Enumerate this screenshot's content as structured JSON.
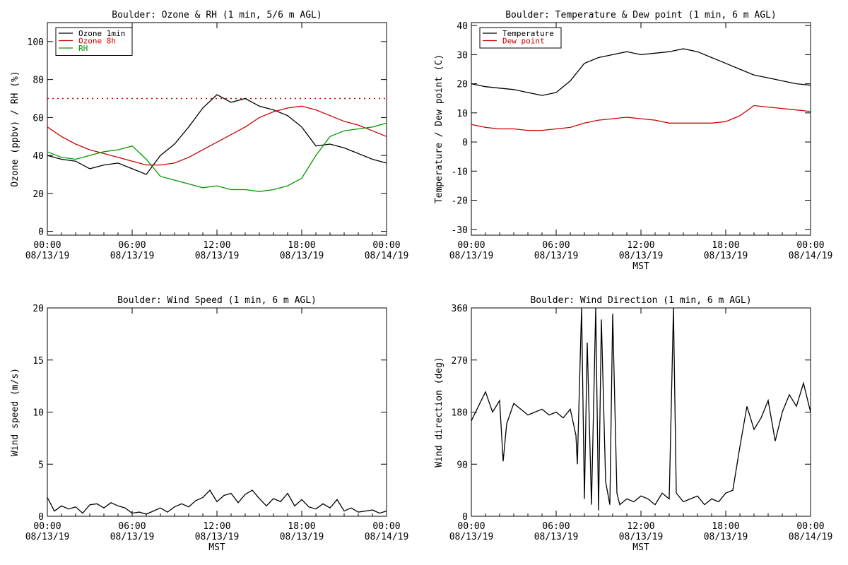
{
  "chart_data": [
    {
      "type": "line",
      "title": "Boulder: Ozone & RH (1 min, 5/6 m AGL)",
      "xlabel": "",
      "ylabel": "Ozone (ppbv) / RH (%)",
      "ylim": [
        -2,
        110
      ],
      "yticks": [
        0,
        20,
        40,
        60,
        80,
        100
      ],
      "xlim": [
        0,
        24
      ],
      "xticks": [
        0,
        6,
        12,
        18,
        24
      ],
      "xtick_labels": [
        [
          "00:00",
          "08/13/19"
        ],
        [
          "06:00",
          "08/13/19"
        ],
        [
          "12:00",
          "08/13/19"
        ],
        [
          "18:00",
          "08/13/19"
        ],
        [
          "00:00",
          "08/14/19"
        ]
      ],
      "legend_position": "top-left",
      "x": [
        0,
        1,
        2,
        3,
        4,
        5,
        6,
        7,
        8,
        9,
        10,
        11,
        12,
        13,
        14,
        15,
        16,
        17,
        18,
        19,
        20,
        21,
        22,
        23,
        24
      ],
      "series": [
        {
          "name": "Ozone 1min",
          "color": "#000000",
          "values": [
            40,
            38,
            37,
            33,
            35,
            36,
            33,
            30,
            40,
            46,
            55,
            65,
            72,
            68,
            70,
            66,
            64,
            61,
            55,
            45,
            46,
            44,
            41,
            38,
            36
          ]
        },
        {
          "name": "Ozone 8h",
          "color": "#cc0000",
          "values": [
            55,
            50,
            46,
            43,
            41,
            39,
            37,
            35,
            35,
            36,
            39,
            43,
            47,
            51,
            55,
            60,
            63,
            65,
            66,
            64,
            61,
            58,
            56,
            53,
            50
          ]
        },
        {
          "name": "RH",
          "color": "#009900",
          "values": [
            42,
            39,
            38,
            40,
            42,
            43,
            45,
            38,
            29,
            27,
            25,
            23,
            24,
            22,
            22,
            21,
            22,
            24,
            28,
            40,
            50,
            53,
            54,
            55,
            57
          ]
        }
      ],
      "reference_lines": [
        {
          "y": 70,
          "color": "#cc0000",
          "style": "dotted"
        }
      ]
    },
    {
      "type": "line",
      "title": "Boulder: Temperature & Dew point (1 min, 6 m AGL)",
      "xlabel": "MST",
      "ylabel": "Temperature / Dew point (C)",
      "ylim": [
        -32,
        41
      ],
      "yticks": [
        -30,
        -20,
        -10,
        0,
        10,
        20,
        30,
        40
      ],
      "xlim": [
        0,
        24
      ],
      "xticks": [
        0,
        6,
        12,
        18,
        24
      ],
      "xtick_labels": [
        [
          "00:00",
          "08/13/19"
        ],
        [
          "06:00",
          "08/13/19"
        ],
        [
          "12:00",
          "08/13/19"
        ],
        [
          "18:00",
          "08/13/19"
        ],
        [
          "00:00",
          "08/14/19"
        ]
      ],
      "legend_position": "top-left",
      "x": [
        0,
        1,
        2,
        3,
        4,
        5,
        6,
        7,
        8,
        9,
        10,
        11,
        12,
        13,
        14,
        15,
        16,
        17,
        18,
        19,
        20,
        21,
        22,
        23,
        24
      ],
      "series": [
        {
          "name": "Temperature",
          "color": "#000000",
          "values": [
            20,
            19,
            18.5,
            18,
            17,
            16,
            17,
            21,
            27,
            29,
            30,
            31,
            30,
            30.5,
            31,
            32,
            31,
            29,
            27,
            25,
            23,
            22,
            21,
            20,
            19.5
          ]
        },
        {
          "name": "Dew point",
          "color": "#cc0000",
          "values": [
            6,
            5,
            4.5,
            4.5,
            4,
            4,
            4.5,
            5,
            6.5,
            7.5,
            8,
            8.5,
            8,
            7.5,
            6.5,
            6.5,
            6.5,
            6.5,
            7,
            9,
            12.5,
            12,
            11.5,
            11,
            10.5
          ]
        }
      ]
    },
    {
      "type": "line",
      "title": "Boulder: Wind Speed (1 min, 6 m AGL)",
      "xlabel": "MST",
      "ylabel": "Wind speed (m/s)",
      "ylim": [
        0,
        20
      ],
      "yticks": [
        0,
        5,
        10,
        15,
        20
      ],
      "xlim": [
        0,
        24
      ],
      "xticks": [
        0,
        6,
        12,
        18,
        24
      ],
      "xtick_labels": [
        [
          "00:00",
          "08/13/19"
        ],
        [
          "06:00",
          "08/13/19"
        ],
        [
          "12:00",
          "08/13/19"
        ],
        [
          "18:00",
          "08/13/19"
        ],
        [
          "00:00",
          "08/14/19"
        ]
      ],
      "x": [
        0,
        0.5,
        1,
        1.5,
        2,
        2.5,
        3,
        3.5,
        4,
        4.5,
        5,
        5.5,
        6,
        6.5,
        7,
        7.5,
        8,
        8.5,
        9,
        9.5,
        10,
        10.5,
        11,
        11.5,
        12,
        12.5,
        13,
        13.5,
        14,
        14.5,
        15,
        15.5,
        16,
        16.5,
        17,
        17.5,
        18,
        18.5,
        19,
        19.5,
        20,
        20.5,
        21,
        21.5,
        22,
        22.5,
        23,
        23.5,
        24
      ],
      "series": [
        {
          "name": "",
          "color": "#000000",
          "values": [
            1.8,
            0.5,
            1.0,
            0.7,
            0.9,
            0.3,
            1.1,
            1.2,
            0.8,
            1.3,
            1.0,
            0.8,
            0.3,
            0.4,
            0.2,
            0.5,
            0.8,
            0.4,
            0.9,
            1.2,
            0.9,
            1.5,
            1.8,
            2.5,
            1.4,
            2.0,
            2.2,
            1.3,
            2.1,
            2.5,
            1.7,
            1.0,
            1.7,
            1.4,
            2.2,
            1.0,
            1.6,
            0.9,
            0.7,
            1.2,
            0.8,
            1.6,
            0.5,
            0.8,
            0.4,
            0.5,
            0.6,
            0.3,
            0.5
          ]
        }
      ]
    },
    {
      "type": "line",
      "title": "Boulder: Wind Direction (1 min, 6 m AGL)",
      "xlabel": "MST",
      "ylabel": "Wind direction (deg)",
      "ylim": [
        0,
        360
      ],
      "yticks": [
        0,
        90,
        180,
        270,
        360
      ],
      "xlim": [
        0,
        24
      ],
      "xticks": [
        0,
        6,
        12,
        18,
        24
      ],
      "xtick_labels": [
        [
          "00:00",
          "08/13/19"
        ],
        [
          "06:00",
          "08/13/19"
        ],
        [
          "12:00",
          "08/13/19"
        ],
        [
          "18:00",
          "08/13/19"
        ],
        [
          "00:00",
          "08/14/19"
        ]
      ],
      "x": [
        0,
        0.5,
        1,
        1.5,
        2,
        2.25,
        2.5,
        3,
        3.5,
        4,
        4.5,
        5,
        5.5,
        6,
        6.5,
        7,
        7.4,
        7.5,
        7.8,
        8,
        8.2,
        8.5,
        8.8,
        9,
        9.2,
        9.5,
        9.8,
        10,
        10.3,
        10.5,
        11,
        11.5,
        12,
        12.5,
        13,
        13.5,
        14,
        14.3,
        14.5,
        15,
        15.5,
        16,
        16.5,
        17,
        17.5,
        18,
        18.5,
        19,
        19.5,
        20,
        20.5,
        21,
        21.5,
        22,
        22.5,
        23,
        23.5,
        24
      ],
      "series": [
        {
          "name": "",
          "color": "#000000",
          "values": [
            165,
            190,
            215,
            180,
            200,
            95,
            160,
            195,
            185,
            175,
            180,
            185,
            175,
            180,
            170,
            185,
            140,
            90,
            360,
            30,
            300,
            20,
            360,
            10,
            340,
            60,
            20,
            350,
            40,
            20,
            30,
            25,
            35,
            30,
            20,
            40,
            30,
            360,
            40,
            25,
            30,
            35,
            20,
            30,
            25,
            40,
            45,
            120,
            190,
            150,
            170,
            200,
            130,
            180,
            210,
            190,
            230,
            180
          ]
        }
      ]
    }
  ]
}
